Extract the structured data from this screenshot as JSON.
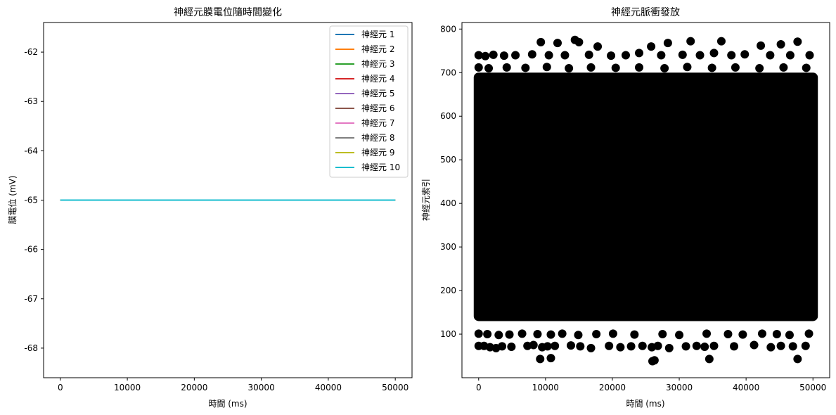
{
  "chart_data": [
    {
      "type": "line",
      "title": "神經元膜電位隨時間變化",
      "xlabel": "時間 (ms)",
      "ylabel": "膜電位 (mV)",
      "xlim": [
        -2500,
        52500
      ],
      "ylim": [
        -68.6,
        -61.4
      ],
      "xticks": [
        0,
        10000,
        20000,
        30000,
        40000,
        50000
      ],
      "yticks": [
        -62,
        -63,
        -64,
        -65,
        -66,
        -67,
        -68
      ],
      "legend_position": "upper-right",
      "grid": false,
      "series": [
        {
          "name": "神經元 1",
          "color": "#1f77b4",
          "x": [
            0,
            50000
          ],
          "y": [
            -65,
            -65
          ]
        },
        {
          "name": "神經元 2",
          "color": "#ff7f0e",
          "x": [
            0,
            50000
          ],
          "y": [
            -65,
            -65
          ]
        },
        {
          "name": "神經元 3",
          "color": "#2ca02c",
          "x": [
            0,
            50000
          ],
          "y": [
            -65,
            -65
          ]
        },
        {
          "name": "神經元 4",
          "color": "#d62728",
          "x": [
            0,
            50000
          ],
          "y": [
            -65,
            -65
          ]
        },
        {
          "name": "神經元 5",
          "color": "#9467bd",
          "x": [
            0,
            50000
          ],
          "y": [
            -65,
            -65
          ]
        },
        {
          "name": "神經元 6",
          "color": "#8c564b",
          "x": [
            0,
            50000
          ],
          "y": [
            -65,
            -65
          ]
        },
        {
          "name": "神經元 7",
          "color": "#e377c2",
          "x": [
            0,
            50000
          ],
          "y": [
            -65,
            -65
          ]
        },
        {
          "name": "神經元 8",
          "color": "#7f7f7f",
          "x": [
            0,
            50000
          ],
          "y": [
            -65,
            -65
          ]
        },
        {
          "name": "神經元 9",
          "color": "#bcbd22",
          "x": [
            0,
            50000
          ],
          "y": [
            -65,
            -65
          ]
        },
        {
          "name": "神經元 10",
          "color": "#17becf",
          "x": [
            0,
            50000
          ],
          "y": [
            -65,
            -65
          ]
        }
      ]
    },
    {
      "type": "scatter",
      "title": "神經元脈衝發放",
      "xlabel": "時間 (ms)",
      "ylabel": "神經元索引",
      "xlim": [
        -2500,
        52500
      ],
      "ylim": [
        0,
        815
      ],
      "xticks": [
        0,
        10000,
        20000,
        30000,
        40000,
        50000
      ],
      "yticks": [
        100,
        200,
        300,
        400,
        500,
        600,
        700,
        800
      ],
      "grid": false,
      "marker_color": "#000000",
      "dense_region": {
        "x": [
          0,
          50000
        ],
        "y": [
          130,
          700
        ]
      },
      "points": [
        {
          "x": 0,
          "y": 73
        },
        {
          "x": 800,
          "y": 73
        },
        {
          "x": 1700,
          "y": 70
        },
        {
          "x": 2600,
          "y": 68
        },
        {
          "x": 3500,
          "y": 72
        },
        {
          "x": 4900,
          "y": 71
        },
        {
          "x": 7300,
          "y": 73
        },
        {
          "x": 8200,
          "y": 75
        },
        {
          "x": 9500,
          "y": 70
        },
        {
          "x": 10300,
          "y": 72
        },
        {
          "x": 11400,
          "y": 73
        },
        {
          "x": 13800,
          "y": 74
        },
        {
          "x": 15200,
          "y": 72
        },
        {
          "x": 16800,
          "y": 68
        },
        {
          "x": 19500,
          "y": 73
        },
        {
          "x": 21200,
          "y": 70
        },
        {
          "x": 22800,
          "y": 72
        },
        {
          "x": 24500,
          "y": 73
        },
        {
          "x": 25900,
          "y": 70
        },
        {
          "x": 26800,
          "y": 73
        },
        {
          "x": 28500,
          "y": 68
        },
        {
          "x": 31000,
          "y": 72
        },
        {
          "x": 32600,
          "y": 73
        },
        {
          "x": 33800,
          "y": 71
        },
        {
          "x": 35200,
          "y": 73
        },
        {
          "x": 38200,
          "y": 72
        },
        {
          "x": 41200,
          "y": 75
        },
        {
          "x": 43700,
          "y": 70
        },
        {
          "x": 45200,
          "y": 73
        },
        {
          "x": 47000,
          "y": 72
        },
        {
          "x": 48900,
          "y": 73
        },
        {
          "x": 0,
          "y": 101
        },
        {
          "x": 1300,
          "y": 100
        },
        {
          "x": 3000,
          "y": 98
        },
        {
          "x": 4600,
          "y": 99
        },
        {
          "x": 6500,
          "y": 101
        },
        {
          "x": 8800,
          "y": 100
        },
        {
          "x": 10800,
          "y": 99
        },
        {
          "x": 12500,
          "y": 101
        },
        {
          "x": 14900,
          "y": 98
        },
        {
          "x": 17600,
          "y": 100
        },
        {
          "x": 20100,
          "y": 101
        },
        {
          "x": 23300,
          "y": 99
        },
        {
          "x": 27500,
          "y": 100
        },
        {
          "x": 30000,
          "y": 98
        },
        {
          "x": 34100,
          "y": 101
        },
        {
          "x": 37300,
          "y": 100
        },
        {
          "x": 39500,
          "y": 99
        },
        {
          "x": 42400,
          "y": 101
        },
        {
          "x": 44600,
          "y": 100
        },
        {
          "x": 46500,
          "y": 98
        },
        {
          "x": 49400,
          "y": 101
        },
        {
          "x": 9200,
          "y": 43
        },
        {
          "x": 10800,
          "y": 45
        },
        {
          "x": 26000,
          "y": 38
        },
        {
          "x": 26300,
          "y": 40
        },
        {
          "x": 34500,
          "y": 43
        },
        {
          "x": 47700,
          "y": 43
        },
        {
          "x": 0,
          "y": 740
        },
        {
          "x": 1000,
          "y": 738
        },
        {
          "x": 2200,
          "y": 741
        },
        {
          "x": 3800,
          "y": 739
        },
        {
          "x": 5500,
          "y": 740
        },
        {
          "x": 8000,
          "y": 742
        },
        {
          "x": 9300,
          "y": 770
        },
        {
          "x": 10500,
          "y": 740
        },
        {
          "x": 11800,
          "y": 768
        },
        {
          "x": 12900,
          "y": 740
        },
        {
          "x": 14400,
          "y": 775
        },
        {
          "x": 15000,
          "y": 770
        },
        {
          "x": 16500,
          "y": 741
        },
        {
          "x": 17800,
          "y": 760
        },
        {
          "x": 19800,
          "y": 739
        },
        {
          "x": 22000,
          "y": 740
        },
        {
          "x": 24000,
          "y": 745
        },
        {
          "x": 25800,
          "y": 760
        },
        {
          "x": 27300,
          "y": 740
        },
        {
          "x": 28300,
          "y": 768
        },
        {
          "x": 30500,
          "y": 741
        },
        {
          "x": 31700,
          "y": 772
        },
        {
          "x": 33100,
          "y": 740
        },
        {
          "x": 35200,
          "y": 745
        },
        {
          "x": 36300,
          "y": 772
        },
        {
          "x": 37800,
          "y": 740
        },
        {
          "x": 39800,
          "y": 742
        },
        {
          "x": 42200,
          "y": 762
        },
        {
          "x": 43600,
          "y": 740
        },
        {
          "x": 45200,
          "y": 765
        },
        {
          "x": 46600,
          "y": 740
        },
        {
          "x": 47700,
          "y": 771
        },
        {
          "x": 49500,
          "y": 740
        },
        {
          "x": 0,
          "y": 712
        },
        {
          "x": 1500,
          "y": 710
        },
        {
          "x": 4200,
          "y": 712
        },
        {
          "x": 7000,
          "y": 711
        },
        {
          "x": 10200,
          "y": 713
        },
        {
          "x": 13500,
          "y": 710
        },
        {
          "x": 16800,
          "y": 712
        },
        {
          "x": 20500,
          "y": 711
        },
        {
          "x": 24000,
          "y": 712
        },
        {
          "x": 27800,
          "y": 710
        },
        {
          "x": 31200,
          "y": 713
        },
        {
          "x": 34900,
          "y": 711
        },
        {
          "x": 38400,
          "y": 712
        },
        {
          "x": 42000,
          "y": 710
        },
        {
          "x": 45600,
          "y": 712
        },
        {
          "x": 49000,
          "y": 711
        }
      ]
    }
  ]
}
